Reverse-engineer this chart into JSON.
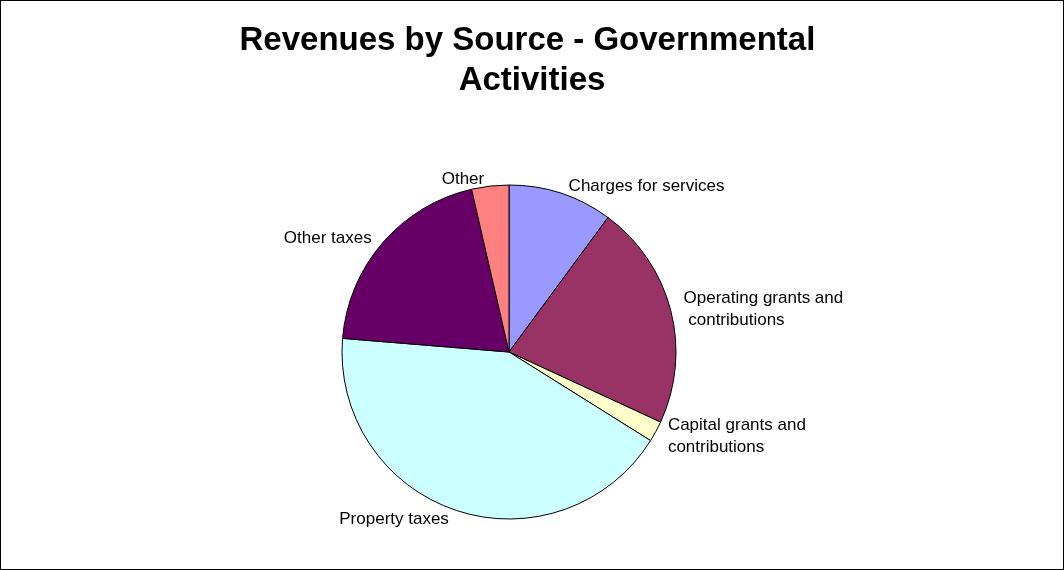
{
  "chart_data": {
    "type": "pie",
    "title": "Revenues by Source - Governmental Activities",
    "categories": [
      "Charges for services",
      "Operating grants and contributions",
      "Capital grants and contributions",
      "Property taxes",
      "Other taxes",
      "Other"
    ],
    "values": [
      10.1,
      21.8,
      2.0,
      42.4,
      20.1,
      3.6
    ],
    "colors": [
      "#9999ff",
      "#993366",
      "#ffffcc",
      "#ccffff",
      "#660066",
      "#ff8080"
    ],
    "legend": false
  }
}
